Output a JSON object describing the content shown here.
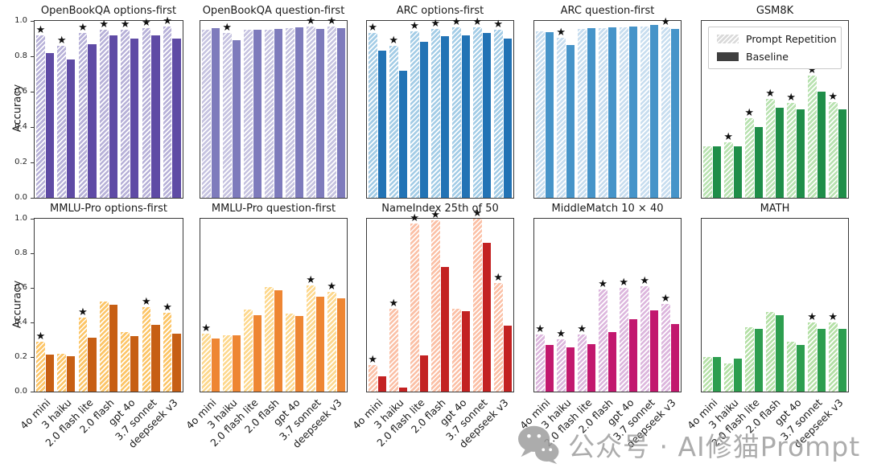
{
  "figure": {
    "ylabel": "Accuracy",
    "yticks": [
      "0.0",
      "0.2",
      "0.4",
      "0.6",
      "0.8",
      "1.0"
    ],
    "background": "#ffffff",
    "watermark": {
      "icon": "wechat-logo-icon",
      "text": "公众号 · AI修猫Prompt",
      "color": "#9e9e9e"
    }
  },
  "legend": {
    "position": "top of GSM8K subplot",
    "items": [
      {
        "label": "Prompt Repetition",
        "style": "hatched",
        "color": "#d9d9d9"
      },
      {
        "label": "Baseline",
        "style": "solid",
        "color": "#3f3f3f"
      }
    ]
  },
  "chart_data": {
    "type": "bar",
    "grid": false,
    "ylim": [
      0.0,
      1.0
    ],
    "categories": [
      "4o mini",
      "3 haiku",
      "2.0 flash lite",
      "2.0 flash",
      "gpt 4o",
      "3.7 sonnet",
      "deepseek v3"
    ],
    "series_names": [
      "Prompt Repetition",
      "Baseline"
    ],
    "star_marker": "★",
    "subplots": [
      {
        "title": "OpenBookQA options-first",
        "row": 0,
        "col": 0,
        "colors": {
          "hatch_base": "#b7b1d8",
          "solid": "#5f4ba5"
        },
        "prompt_repetition": [
          0.92,
          0.86,
          0.93,
          0.95,
          0.95,
          0.96,
          0.97
        ],
        "baseline": [
          0.82,
          0.78,
          0.87,
          0.92,
          0.9,
          0.92,
          0.9
        ],
        "stars": [
          0,
          1,
          2,
          3,
          4,
          5,
          6
        ],
        "show_yticks": true,
        "has_legend": false
      },
      {
        "title": "OpenBookQA question-first",
        "row": 0,
        "col": 1,
        "colors": {
          "hatch_base": "#c6c3e0",
          "solid": "#7e7bbc"
        },
        "prompt_repetition": [
          0.95,
          0.93,
          0.95,
          0.95,
          0.96,
          0.97,
          0.97
        ],
        "baseline": [
          0.96,
          0.89,
          0.95,
          0.955,
          0.965,
          0.955,
          0.96
        ],
        "stars": [
          1,
          5,
          6
        ],
        "show_yticks": false,
        "has_legend": false
      },
      {
        "title": "ARC options-first",
        "row": 0,
        "col": 2,
        "colors": {
          "hatch_base": "#a3cce6",
          "solid": "#2273b5"
        },
        "prompt_repetition": [
          0.93,
          0.86,
          0.94,
          0.955,
          0.965,
          0.965,
          0.95
        ],
        "baseline": [
          0.83,
          0.72,
          0.88,
          0.915,
          0.92,
          0.93,
          0.9
        ],
        "stars": [
          0,
          1,
          2,
          3,
          4,
          5,
          6
        ],
        "show_yticks": false,
        "has_legend": false
      },
      {
        "title": "ARC question-first",
        "row": 0,
        "col": 3,
        "colors": {
          "hatch_base": "#c7ddef",
          "solid": "#4694c9"
        },
        "prompt_repetition": [
          0.94,
          0.905,
          0.955,
          0.96,
          0.965,
          0.97,
          0.965
        ],
        "baseline": [
          0.935,
          0.865,
          0.96,
          0.965,
          0.97,
          0.975,
          0.955
        ],
        "stars": [
          1,
          6
        ],
        "show_yticks": false,
        "has_legend": false
      },
      {
        "title": "GSM8K",
        "row": 0,
        "col": 4,
        "colors": {
          "hatch_base": "#b8e2b0",
          "solid": "#1f8e49"
        },
        "prompt_repetition": [
          0.29,
          0.315,
          0.45,
          0.56,
          0.535,
          0.69,
          0.54
        ],
        "baseline": [
          0.29,
          0.29,
          0.4,
          0.51,
          0.5,
          0.6,
          0.5
        ],
        "stars": [
          1,
          2,
          3,
          4,
          5,
          6
        ],
        "show_yticks": false,
        "has_legend": true
      },
      {
        "title": "MMLU-Pro options-first",
        "row": 1,
        "col": 0,
        "colors": {
          "hatch_base": "#fcc567",
          "solid": "#c75f14"
        },
        "prompt_repetition": [
          0.29,
          0.22,
          0.43,
          0.52,
          0.345,
          0.49,
          0.455
        ],
        "baseline": [
          0.215,
          0.205,
          0.31,
          0.5,
          0.32,
          0.385,
          0.335
        ],
        "stars": [
          0,
          2,
          5,
          6
        ],
        "show_yticks": true,
        "has_legend": false
      },
      {
        "title": "MMLU-Pro question-first",
        "row": 1,
        "col": 1,
        "colors": {
          "hatch_base": "#fdd88d",
          "solid": "#ee8633"
        },
        "prompt_repetition": [
          0.335,
          0.325,
          0.475,
          0.605,
          0.45,
          0.615,
          0.575
        ],
        "baseline": [
          0.305,
          0.325,
          0.44,
          0.585,
          0.435,
          0.55,
          0.54
        ],
        "stars": [
          0,
          5,
          6
        ],
        "show_yticks": false,
        "has_legend": false
      },
      {
        "title": "NameIndex 25th of 50",
        "row": 1,
        "col": 2,
        "colors": {
          "hatch_base": "#fbc0a6",
          "solid": "#c32222"
        },
        "prompt_repetition": [
          0.155,
          0.48,
          0.97,
          0.99,
          0.48,
          1.0,
          0.63
        ],
        "baseline": [
          0.09,
          0.025,
          0.21,
          0.72,
          0.465,
          0.86,
          0.38
        ],
        "stars": [
          0,
          1,
          2,
          3,
          5,
          6
        ],
        "show_yticks": false,
        "has_legend": false
      },
      {
        "title": "MiddleMatch 10 × 40",
        "row": 1,
        "col": 3,
        "colors": {
          "hatch_base": "#dcb6dd",
          "solid": "#c2186e"
        },
        "prompt_repetition": [
          0.33,
          0.3,
          0.33,
          0.59,
          0.6,
          0.61,
          0.505
        ],
        "baseline": [
          0.27,
          0.255,
          0.275,
          0.345,
          0.42,
          0.47,
          0.39
        ],
        "stars": [
          0,
          1,
          2,
          3,
          4,
          5,
          6
        ],
        "show_yticks": false,
        "has_legend": false
      },
      {
        "title": "MATH",
        "row": 1,
        "col": 4,
        "colors": {
          "hatch_base": "#b4e0a6",
          "solid": "#2d9e4f"
        },
        "prompt_repetition": [
          0.2,
          0.165,
          0.37,
          0.46,
          0.29,
          0.4,
          0.4
        ],
        "baseline": [
          0.2,
          0.19,
          0.365,
          0.44,
          0.27,
          0.365,
          0.365
        ],
        "stars": [
          5,
          6
        ],
        "show_yticks": false,
        "has_legend": false
      }
    ]
  }
}
